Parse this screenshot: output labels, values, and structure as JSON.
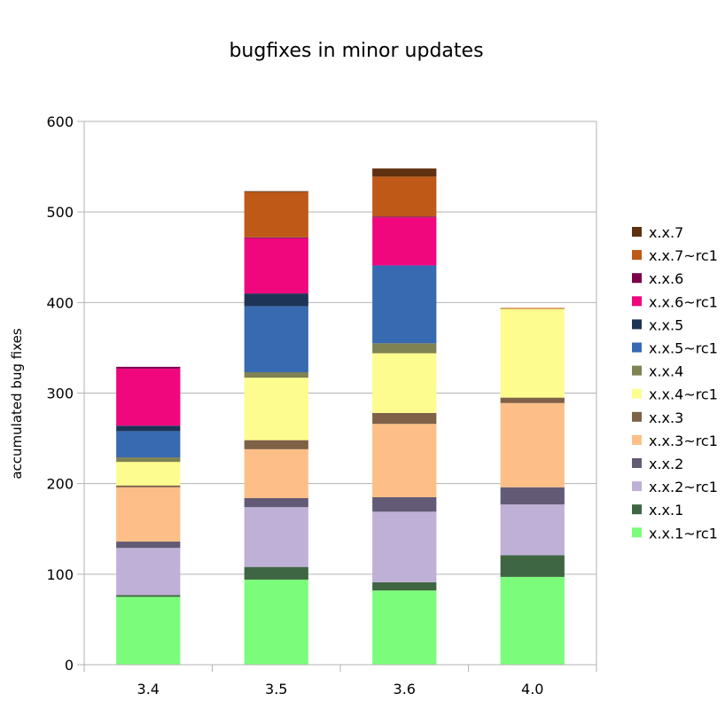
{
  "chart_data": {
    "type": "bar",
    "stacked": true,
    "title": "bugfixes in minor updates",
    "xlabel": "",
    "ylabel": "accumulated bug fixes",
    "ylim": [
      0,
      600
    ],
    "yticks": [
      0,
      100,
      200,
      300,
      400,
      500,
      600
    ],
    "categories": [
      "3.4",
      "3.5",
      "3.6",
      "4.0"
    ],
    "grid": true,
    "legend_position": "right",
    "series": [
      {
        "name": "x.x.1~rc1",
        "color": "#7bfd7b",
        "values": [
          75,
          94,
          82,
          97
        ]
      },
      {
        "name": "x.x.1",
        "color": "#3e6642",
        "values": [
          2,
          14,
          9,
          24
        ]
      },
      {
        "name": "x.x.2~rc1",
        "color": "#bfb0d7",
        "values": [
          52,
          66,
          78,
          56
        ]
      },
      {
        "name": "x.x.2",
        "color": "#635b75",
        "values": [
          7,
          10,
          16,
          19
        ]
      },
      {
        "name": "x.x.3~rc1",
        "color": "#fdbf87",
        "values": [
          60,
          54,
          81,
          93
        ]
      },
      {
        "name": "x.x.3",
        "color": "#7e6146",
        "values": [
          2,
          10,
          12,
          6
        ]
      },
      {
        "name": "x.x.4~rc1",
        "color": "#fdfd8f",
        "values": [
          26,
          69,
          66,
          98
        ]
      },
      {
        "name": "x.x.4",
        "color": "#7f8253",
        "values": [
          5,
          6,
          11,
          0
        ]
      },
      {
        "name": "x.x.5~rc1",
        "color": "#376ab0",
        "values": [
          29,
          73,
          86,
          0
        ]
      },
      {
        "name": "x.x.5",
        "color": "#1e3456",
        "values": [
          6,
          14,
          0,
          0
        ]
      },
      {
        "name": "x.x.6~rc1",
        "color": "#f0077e",
        "values": [
          63,
          61,
          53,
          0
        ]
      },
      {
        "name": "x.x.6",
        "color": "#7a004c",
        "values": [
          2,
          1,
          1,
          0
        ]
      },
      {
        "name": "x.x.7~rc1",
        "color": "#bf5917",
        "values": [
          0,
          50,
          44,
          1
        ]
      },
      {
        "name": "x.x.7",
        "color": "#5f3110",
        "values": [
          0,
          1,
          9,
          0
        ]
      }
    ]
  }
}
